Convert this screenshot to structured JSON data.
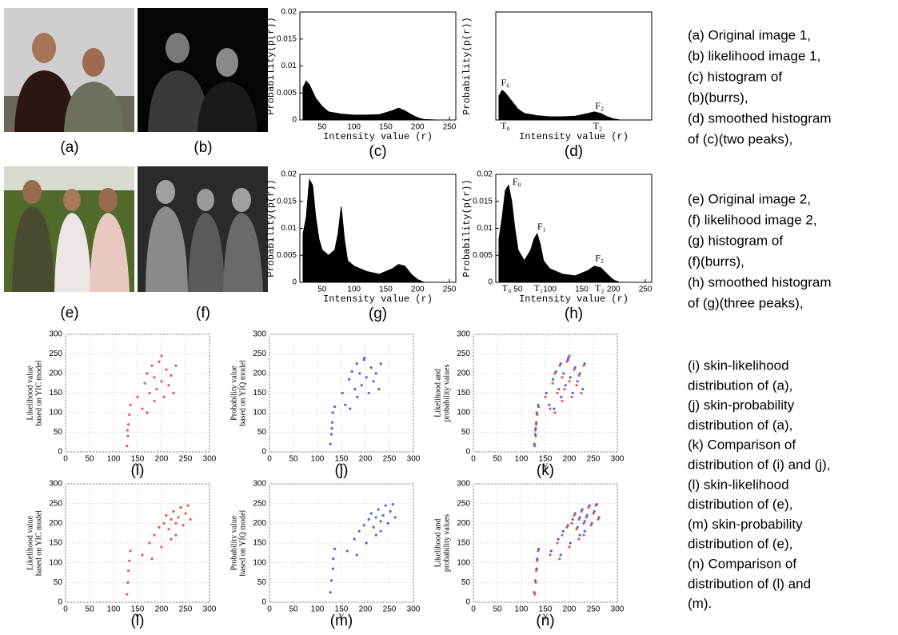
{
  "figures": [
    {
      "label": "(a)"
    },
    {
      "label": "(b)"
    },
    {
      "label": "(e)"
    },
    {
      "label": "(f)"
    }
  ],
  "captions": [
    [
      "(a) Original image 1,",
      "(b) likelihood image 1,",
      "(c) histogram of",
      "(b)(burrs),",
      "(d) smoothed histogram",
      "of (c)(two peaks),"
    ],
    [
      "(e) Original image 2,",
      "(f) likelihood image 2,",
      "(g) histogram of",
      "(f)(burrs),",
      "(h) smoothed histogram",
      "of (g)(three peaks),"
    ],
    [
      "(i) skin-likelihood",
      "distribution of (a),",
      "(j) skin-probability",
      "distribution of (a),",
      "(k) Comparison of",
      "distribution of (i) and (j),",
      "(l) skin-likelihood",
      "distribution of (e),",
      "(m) skin-probability",
      "distribution of (e),",
      "(n) Comparison of",
      "distribution of (l) and",
      "(m)."
    ]
  ],
  "chart_data": [
    {
      "type": "area",
      "panel_label": "(c)",
      "xlabel": "Intensity value (r)",
      "ylabel": "Probability(p(r))",
      "xlim": [
        15,
        260
      ],
      "ylim": [
        0,
        0.02
      ],
      "xticks": [
        50,
        100,
        150,
        200,
        250
      ],
      "yticks": [
        0,
        0.005,
        0.01,
        0.015,
        0.02
      ],
      "color": "#000000",
      "x": [
        20,
        25,
        30,
        40,
        50,
        60,
        80,
        100,
        120,
        140,
        160,
        170,
        180,
        190,
        200,
        210,
        230,
        250
      ],
      "values": [
        0.006,
        0.0072,
        0.0065,
        0.004,
        0.0025,
        0.0015,
        0.0011,
        0.0009,
        0.0009,
        0.001,
        0.0017,
        0.0022,
        0.0017,
        0.001,
        0.0004,
        0.0001,
        0,
        0
      ]
    },
    {
      "type": "area",
      "panel_label": "(d)",
      "xlabel": "Intensity value (r)",
      "ylabel": "Probability(p(r))",
      "xlim": [
        15,
        260
      ],
      "ylim": [
        0,
        0.02
      ],
      "color": "#000000",
      "annotations": [
        "F₀",
        "F₂",
        "T₀",
        "T₂"
      ],
      "x": [
        20,
        25,
        30,
        40,
        50,
        60,
        80,
        100,
        120,
        140,
        160,
        170,
        180,
        190,
        200,
        210,
        230,
        250
      ],
      "values": [
        0.0045,
        0.0055,
        0.005,
        0.0035,
        0.002,
        0.0012,
        0.0008,
        0.0006,
        0.0006,
        0.0007,
        0.0012,
        0.0015,
        0.0012,
        0.0006,
        0.0002,
        0,
        0,
        0
      ]
    },
    {
      "type": "area",
      "panel_label": "(g)",
      "xlabel": "Intensity value (r)",
      "ylabel": "Probability(p(r))",
      "xlim": [
        15,
        260
      ],
      "ylim": [
        0,
        0.02
      ],
      "xticks": [
        50,
        100,
        150,
        200,
        250
      ],
      "yticks": [
        0,
        0.005,
        0.01,
        0.015,
        0.02
      ],
      "color": "#000000",
      "x": [
        20,
        25,
        30,
        35,
        40,
        45,
        50,
        60,
        70,
        75,
        80,
        85,
        90,
        100,
        120,
        140,
        160,
        170,
        180,
        190,
        200,
        210,
        230,
        250
      ],
      "values": [
        0.009,
        0.012,
        0.019,
        0.018,
        0.012,
        0.008,
        0.006,
        0.005,
        0.006,
        0.009,
        0.014,
        0.008,
        0.004,
        0.003,
        0.002,
        0.0015,
        0.0025,
        0.0033,
        0.003,
        0.0015,
        0.0005,
        0,
        0,
        0
      ]
    },
    {
      "type": "area",
      "panel_label": "(h)",
      "xlabel": "Intensity value (r)",
      "ylabel": "Probability(p(r))",
      "xlim": [
        15,
        260
      ],
      "ylim": [
        0,
        0.02
      ],
      "xticks": [
        50,
        100,
        150,
        200,
        250
      ],
      "yticks": [
        0,
        0.005,
        0.01,
        0.015,
        0.02
      ],
      "color": "#000000",
      "annotations": [
        "F₀",
        "F₁",
        "F₂",
        "T₀",
        "T₁",
        "T₂"
      ],
      "x": [
        20,
        25,
        30,
        35,
        40,
        45,
        50,
        60,
        70,
        75,
        80,
        85,
        90,
        100,
        120,
        140,
        160,
        170,
        180,
        190,
        200,
        210,
        230,
        250
      ],
      "values": [
        0.008,
        0.012,
        0.017,
        0.018,
        0.015,
        0.01,
        0.006,
        0.004,
        0.006,
        0.008,
        0.009,
        0.007,
        0.004,
        0.0025,
        0.0015,
        0.0012,
        0.0022,
        0.003,
        0.0027,
        0.0015,
        0.0004,
        0,
        0,
        0
      ]
    },
    {
      "type": "scatter",
      "panel_label": "(i)",
      "xlabel": "Y",
      "ylabel": [
        "Likelihood value",
        "based on YIC model"
      ],
      "xlim": [
        0,
        300
      ],
      "ylim": [
        0,
        300
      ],
      "xticks": [
        0,
        50,
        100,
        150,
        200,
        250,
        300
      ],
      "yticks": [
        0,
        50,
        100,
        150,
        200,
        250,
        300
      ],
      "grid": true,
      "series": [
        {
          "color": "#e02020",
          "x": [
            128,
            130,
            131,
            133,
            129,
            135,
            150,
            160,
            165,
            170,
            175,
            180,
            185,
            190,
            195,
            200,
            205,
            210,
            215,
            220,
            225,
            200,
            185,
            170,
            230
          ],
          "values": [
            15,
            40,
            70,
            95,
            55,
            120,
            140,
            110,
            175,
            200,
            150,
            220,
            190,
            160,
            230,
            180,
            140,
            210,
            170,
            195,
            150,
            245,
            130,
            100,
            220
          ]
        }
      ]
    },
    {
      "type": "scatter",
      "panel_label": "(j)",
      "xlabel": "Y",
      "ylabel": [
        "Probability value",
        "based on YIQ model"
      ],
      "xlim": [
        0,
        300
      ],
      "ylim": [
        0,
        300
      ],
      "xticks": [
        0,
        50,
        100,
        150,
        200,
        250,
        300
      ],
      "yticks": [
        0,
        50,
        100,
        150,
        200,
        250,
        300
      ],
      "grid": true,
      "series": [
        {
          "color": "#2030d0",
          "x": [
            127,
            129,
            131,
            132,
            130,
            136,
            152,
            158,
            166,
            172,
            178,
            182,
            188,
            192,
            197,
            202,
            207,
            212,
            217,
            222,
            228,
            198,
            183,
            168,
            232
          ],
          "values": [
            20,
            45,
            75,
            100,
            60,
            115,
            150,
            120,
            185,
            205,
            160,
            225,
            200,
            170,
            235,
            190,
            150,
            215,
            180,
            200,
            160,
            240,
            140,
            110,
            225
          ]
        }
      ]
    },
    {
      "type": "scatter",
      "panel_label": "(k)",
      "xlabel": "Y",
      "ylabel": [
        "Likelihood and",
        "probability values"
      ],
      "xlim": [
        0,
        300
      ],
      "ylim": [
        0,
        300
      ],
      "xticks": [
        0,
        50,
        100,
        150,
        200,
        250,
        300
      ],
      "yticks": [
        0,
        50,
        100,
        150,
        200,
        250,
        300
      ],
      "grid": true,
      "series": [
        {
          "color": "#e02020",
          "x": [
            128,
            130,
            131,
            133,
            129,
            135,
            150,
            160,
            165,
            170,
            175,
            180,
            185,
            190,
            195,
            200,
            205,
            210,
            215,
            220,
            225,
            200,
            185,
            170,
            230
          ],
          "values": [
            15,
            40,
            70,
            95,
            55,
            120,
            140,
            110,
            175,
            200,
            150,
            220,
            190,
            160,
            230,
            180,
            140,
            210,
            170,
            195,
            150,
            245,
            130,
            100,
            220
          ]
        },
        {
          "color": "#2030d0",
          "x": [
            127,
            129,
            131,
            132,
            130,
            136,
            152,
            158,
            166,
            172,
            178,
            182,
            188,
            192,
            197,
            202,
            207,
            212,
            217,
            222,
            228,
            198,
            183,
            168,
            232
          ],
          "values": [
            20,
            45,
            75,
            100,
            60,
            115,
            150,
            120,
            185,
            205,
            160,
            225,
            200,
            170,
            235,
            190,
            150,
            215,
            180,
            200,
            160,
            240,
            140,
            110,
            225
          ]
        }
      ]
    },
    {
      "type": "scatter",
      "panel_label": "(l)",
      "xlabel": "Y",
      "ylabel": [
        "Likelihood value",
        "based on YIC model"
      ],
      "xlim": [
        0,
        300
      ],
      "ylim": [
        0,
        300
      ],
      "xticks": [
        0,
        50,
        100,
        150,
        200,
        250,
        300
      ],
      "yticks": [
        0,
        50,
        100,
        150,
        200,
        250,
        300
      ],
      "grid": true,
      "series": [
        {
          "color": "#e02020",
          "x": [
            128,
            130,
            131,
            133,
            135,
            160,
            175,
            185,
            195,
            205,
            210,
            215,
            220,
            225,
            230,
            235,
            240,
            245,
            250,
            260,
            200,
            180,
            230,
            255,
            220
          ],
          "values": [
            20,
            50,
            80,
            105,
            130,
            120,
            150,
            170,
            190,
            200,
            220,
            185,
            210,
            230,
            200,
            215,
            240,
            195,
            225,
            210,
            140,
            110,
            170,
            245,
            160
          ]
        }
      ]
    },
    {
      "type": "scatter",
      "panel_label": "(m)",
      "xlabel": "Y",
      "ylabel": [
        "Probability value",
        "based on YIQ model"
      ],
      "xlim": [
        0,
        300
      ],
      "ylim": [
        0,
        300
      ],
      "xticks": [
        0,
        50,
        100,
        150,
        200,
        250,
        300
      ],
      "yticks": [
        0,
        50,
        100,
        150,
        200,
        250,
        300
      ],
      "grid": true,
      "series": [
        {
          "color": "#2030d0",
          "x": [
            127,
            129,
            132,
            133,
            136,
            162,
            177,
            187,
            197,
            207,
            212,
            217,
            222,
            227,
            232,
            237,
            242,
            247,
            252,
            262,
            202,
            182,
            232,
            257,
            222
          ],
          "values": [
            25,
            55,
            85,
            110,
            135,
            130,
            160,
            180,
            195,
            210,
            225,
            190,
            215,
            235,
            205,
            220,
            245,
            200,
            230,
            215,
            150,
            120,
            180,
            248,
            170
          ]
        }
      ]
    },
    {
      "type": "scatter",
      "panel_label": "(n)",
      "xlabel": "Y",
      "ylabel": [
        "Likelihood and",
        "probability values"
      ],
      "xlim": [
        0,
        300
      ],
      "ylim": [
        0,
        300
      ],
      "xticks": [
        0,
        50,
        100,
        150,
        200,
        250,
        300
      ],
      "yticks": [
        0,
        50,
        100,
        150,
        200,
        250,
        300
      ],
      "grid": true,
      "series": [
        {
          "color": "#e02020",
          "x": [
            128,
            130,
            131,
            133,
            135,
            160,
            175,
            185,
            195,
            205,
            210,
            215,
            220,
            225,
            230,
            235,
            240,
            245,
            250,
            260,
            200,
            180,
            230,
            255,
            220
          ],
          "values": [
            20,
            50,
            80,
            105,
            130,
            120,
            150,
            170,
            190,
            200,
            220,
            185,
            210,
            230,
            200,
            215,
            240,
            195,
            225,
            210,
            140,
            110,
            170,
            245,
            160
          ]
        },
        {
          "color": "#2030d0",
          "x": [
            127,
            129,
            132,
            133,
            136,
            162,
            177,
            187,
            197,
            207,
            212,
            217,
            222,
            227,
            232,
            237,
            242,
            247,
            252,
            262,
            202,
            182,
            232,
            257,
            222
          ],
          "values": [
            25,
            55,
            85,
            110,
            135,
            130,
            160,
            180,
            195,
            210,
            225,
            190,
            215,
            235,
            205,
            220,
            245,
            200,
            230,
            215,
            150,
            120,
            180,
            248,
            170
          ]
        }
      ]
    }
  ]
}
